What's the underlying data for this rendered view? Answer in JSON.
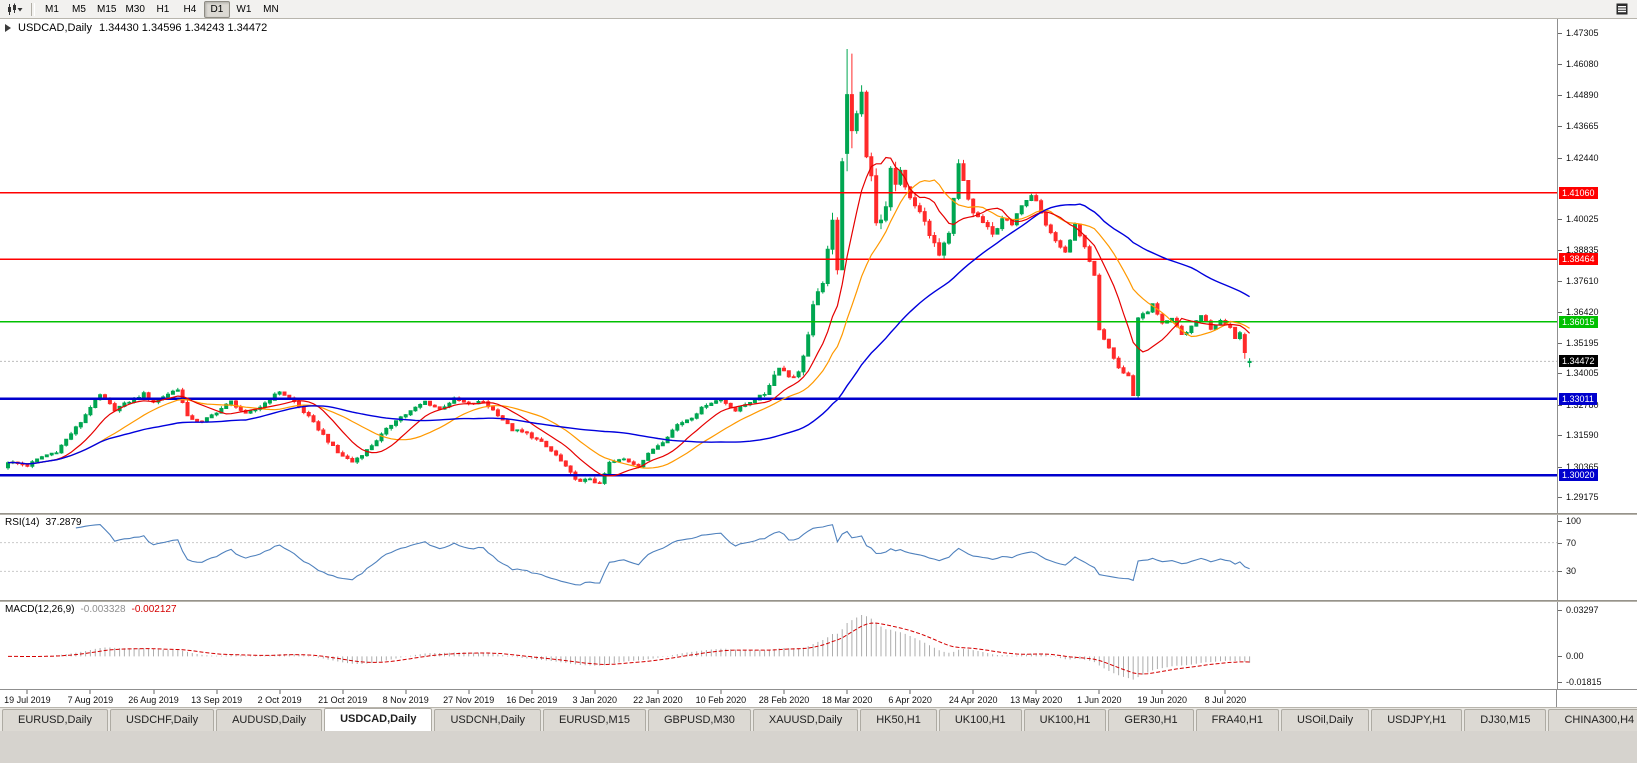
{
  "toolbar": {
    "timeframes": [
      "M1",
      "M5",
      "M15",
      "M30",
      "H1",
      "H4",
      "D1",
      "W1",
      "MN"
    ],
    "active_timeframe": "D1",
    "left_icon": "chart-type-icon",
    "right_icon": "window-menu-icon"
  },
  "main_chart": {
    "symbol": "USDCAD,Daily",
    "ohlc_text": "1.34430 1.34596 1.34243 1.34472",
    "current_price": "1.34472"
  },
  "rsi": {
    "title_label": "RSI(14)",
    "value": "37.2879",
    "levels": [
      "100",
      "70",
      "30"
    ]
  },
  "macd": {
    "title_label": "MACD(12,26,9)",
    "value_main": "-0.003328",
    "value_signal": "-0.002127",
    "axis": [
      "0.03297",
      "0.00",
      "-0.01815"
    ]
  },
  "price_axis": [
    "1.47305",
    "1.46080",
    "1.44890",
    "1.43665",
    "1.42440",
    "1.40025",
    "1.38835",
    "1.37610",
    "1.36420",
    "1.35195",
    "1.34005",
    "1.32780",
    "1.31590",
    "1.30365",
    "1.29175"
  ],
  "date_axis": [
    "19 Jul 2019",
    "7 Aug 2019",
    "26 Aug 2019",
    "13 Sep 2019",
    "2 Oct 2019",
    "21 Oct 2019",
    "8 Nov 2019",
    "27 Nov 2019",
    "16 Dec 2019",
    "3 Jan 2020",
    "22 Jan 2020",
    "10 Feb 2020",
    "28 Feb 2020",
    "18 Mar 2020",
    "6 Apr 2020",
    "24 Apr 2020",
    "13 May 2020",
    "1 Jun 2020",
    "19 Jun 2020",
    "8 Jul 2020"
  ],
  "tabs": [
    {
      "label": "EURUSD,Daily"
    },
    {
      "label": "USDCHF,Daily"
    },
    {
      "label": "AUDUSD,Daily"
    },
    {
      "label": "USDCAD,Daily",
      "active": true
    },
    {
      "label": "USDCNH,Daily"
    },
    {
      "label": "EURUSD,M15"
    },
    {
      "label": "GBPUSD,M30"
    },
    {
      "label": "XAUUSD,Daily"
    },
    {
      "label": "HK50,H1"
    },
    {
      "label": "UK100,H1"
    },
    {
      "label": "UK100,H1"
    },
    {
      "label": "GER30,H1"
    },
    {
      "label": "FRA40,H1"
    },
    {
      "label": "USOil,Daily"
    },
    {
      "label": "USDJPY,H1"
    },
    {
      "label": "DJ30,M15"
    },
    {
      "label": "CHINA300,H4"
    }
  ],
  "colors": {
    "bull": "#00a651",
    "bear": "#ff2a2a",
    "ma_fast": "#e60000",
    "ma_mid": "#ff9900",
    "ma_slow": "#0000dd",
    "rsi_line": "#4f81bd",
    "macd_hist": "#adadad",
    "macd_signal": "#d40000",
    "current_price_bg": "#000000"
  },
  "chart_data": {
    "type": "candlestick",
    "symbol": "USDCAD",
    "timeframe": "Daily",
    "title": "USDCAD,Daily 1.34430 1.34596 1.34243 1.34472",
    "num_candles": 257,
    "first_label_day": 4,
    "label_step_days": 13,
    "y_axis": {
      "min": 1.29175,
      "max": 1.47305
    },
    "macd_scale": {
      "max": 0.03297,
      "min": -0.01815
    },
    "current": {
      "open": 1.3443,
      "high": 1.34596,
      "low": 1.34243,
      "close": 1.34472
    },
    "hlines": [
      {
        "price": 1.4106,
        "label": "1.41060",
        "color": "#ff0000",
        "width": 1.6
      },
      {
        "price": 1.38464,
        "label": "1.38464",
        "color": "#ff0000",
        "width": 1.6
      },
      {
        "price": 1.36015,
        "label": "1.36015",
        "color": "#00c000",
        "width": 1.6
      },
      {
        "price": 1.33011,
        "label": "1.33011",
        "color": "#0000cd",
        "width": 2.4
      },
      {
        "price": 1.3002,
        "label": "1.30020",
        "color": "#0000cd",
        "width": 2.4
      }
    ],
    "indicators": [
      {
        "name": "MA",
        "periods": [
          10,
          20,
          50
        ]
      },
      {
        "name": "RSI",
        "params": [
          14
        ],
        "value": 37.2879,
        "levels": [
          100,
          70,
          30
        ]
      },
      {
        "name": "MACD",
        "params": [
          12,
          26,
          9
        ],
        "values": [
          -0.003328,
          -0.002127
        ]
      }
    ],
    "anchors": [
      [
        0,
        1.3055
      ],
      [
        4,
        1.304
      ],
      [
        7,
        1.3075
      ],
      [
        10,
        1.3095
      ],
      [
        13,
        1.3165
      ],
      [
        15,
        1.321
      ],
      [
        17,
        1.327
      ],
      [
        19,
        1.3315
      ],
      [
        22,
        1.326
      ],
      [
        25,
        1.329
      ],
      [
        28,
        1.332
      ],
      [
        30,
        1.329
      ],
      [
        32,
        1.331
      ],
      [
        35,
        1.334
      ],
      [
        37,
        1.323
      ],
      [
        40,
        1.321
      ],
      [
        43,
        1.325
      ],
      [
        46,
        1.329
      ],
      [
        49,
        1.324
      ],
      [
        52,
        1.327
      ],
      [
        56,
        1.333
      ],
      [
        59,
        1.329
      ],
      [
        62,
        1.323
      ],
      [
        65,
        1.316
      ],
      [
        68,
        1.309
      ],
      [
        71,
        1.3055
      ],
      [
        74,
        1.31
      ],
      [
        77,
        1.316
      ],
      [
        80,
        1.322
      ],
      [
        82,
        1.324
      ],
      [
        86,
        1.329
      ],
      [
        89,
        1.326
      ],
      [
        92,
        1.33
      ],
      [
        95,
        1.328
      ],
      [
        98,
        1.329
      ],
      [
        101,
        1.324
      ],
      [
        104,
        1.318
      ],
      [
        107,
        1.3165
      ],
      [
        110,
        1.313
      ],
      [
        113,
        1.308
      ],
      [
        116,
        1.301
      ],
      [
        118,
        1.2975
      ],
      [
        120,
        1.299
      ],
      [
        122,
        1.2965
      ],
      [
        124,
        1.305
      ],
      [
        127,
        1.3065
      ],
      [
        130,
        1.304
      ],
      [
        133,
        1.3105
      ],
      [
        135,
        1.3135
      ],
      [
        138,
        1.32
      ],
      [
        141,
        1.323
      ],
      [
        144,
        1.328
      ],
      [
        147,
        1.33
      ],
      [
        150,
        1.3255
      ],
      [
        153,
        1.329
      ],
      [
        156,
        1.332
      ],
      [
        159,
        1.343
      ],
      [
        161,
        1.339
      ],
      [
        163,
        1.34
      ],
      [
        165,
        1.355
      ],
      [
        166,
        1.366
      ],
      [
        168,
        1.376
      ],
      [
        170,
        1.399
      ],
      [
        171,
        1.382
      ],
      [
        172,
        1.424
      ],
      [
        173,
        1.449
      ],
      [
        174,
        1.4349
      ],
      [
        175,
        1.443
      ],
      [
        176,
        1.4486
      ],
      [
        177,
        1.423
      ],
      [
        178,
        1.418
      ],
      [
        179,
        1.399
      ],
      [
        180,
        1.401
      ],
      [
        181,
        1.406
      ],
      [
        182,
        1.4211
      ],
      [
        183,
        1.413
      ],
      [
        184,
        1.419
      ],
      [
        186,
        1.408
      ],
      [
        188,
        1.403
      ],
      [
        190,
        1.395
      ],
      [
        192,
        1.386
      ],
      [
        194,
        1.394
      ],
      [
        196,
        1.4215
      ],
      [
        198,
        1.408
      ],
      [
        199,
        1.403
      ],
      [
        201,
        1.399
      ],
      [
        203,
        1.394
      ],
      [
        205,
        1.401
      ],
      [
        207,
        1.398
      ],
      [
        209,
        1.406
      ],
      [
        211,
        1.41
      ],
      [
        212,
        1.408
      ],
      [
        214,
        1.398
      ],
      [
        216,
        1.392
      ],
      [
        218,
        1.387
      ],
      [
        220,
        1.398
      ],
      [
        222,
        1.389
      ],
      [
        224,
        1.378
      ],
      [
        225,
        1.357
      ],
      [
        227,
        1.35
      ],
      [
        229,
        1.342
      ],
      [
        231,
        1.339
      ],
      [
        232,
        1.3315
      ],
      [
        233,
        1.362
      ],
      [
        235,
        1.364
      ],
      [
        236,
        1.367
      ],
      [
        238,
        1.36
      ],
      [
        240,
        1.361
      ],
      [
        242,
        1.355
      ],
      [
        244,
        1.358
      ],
      [
        246,
        1.363
      ],
      [
        248,
        1.3576
      ],
      [
        250,
        1.361
      ],
      [
        252,
        1.358
      ],
      [
        253,
        1.354
      ],
      [
        254,
        1.356
      ],
      [
        255,
        1.35
      ],
      [
        256,
        1.3447
      ]
    ],
    "candle_overrides": {
      "173": [
        1.426,
        1.4668,
        1.419,
        1.449
      ],
      "174": [
        1.449,
        1.465,
        1.428,
        1.4349
      ],
      "255": [
        1.3552,
        1.356,
        1.3458,
        1.3482
      ],
      "256": [
        1.3443,
        1.34596,
        1.34243,
        1.34472
      ]
    }
  }
}
